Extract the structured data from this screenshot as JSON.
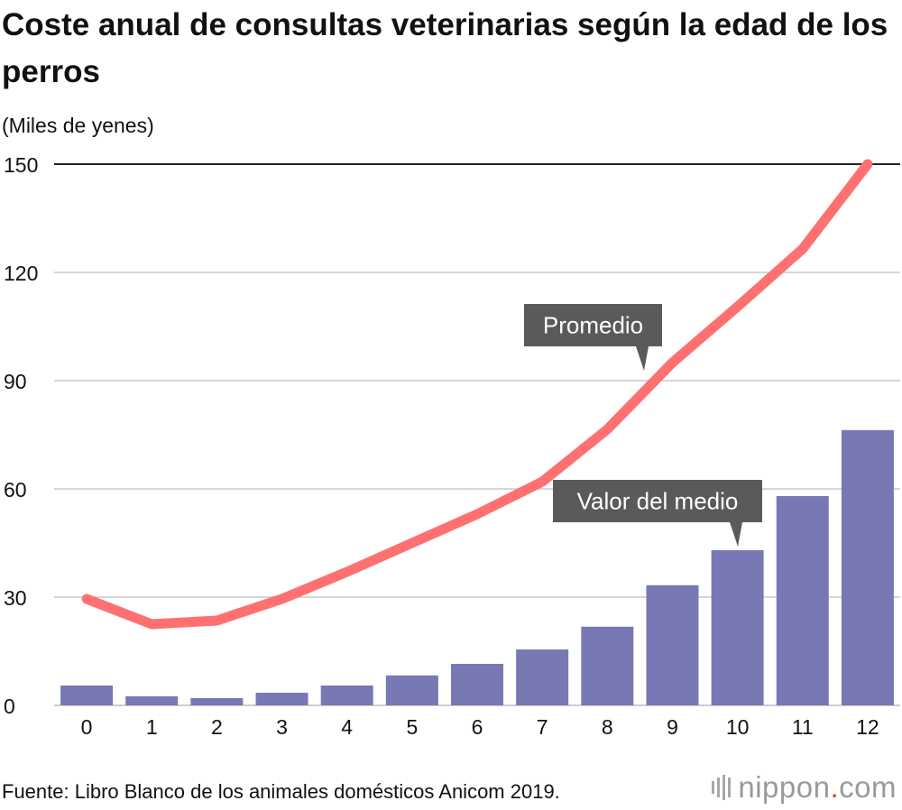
{
  "chart_data": {
    "type": "bar+line",
    "title": "Coste anual de consultas veterinarias según la edad de los perros",
    "ylabel": "(Miles de yenes)",
    "xlabel": "",
    "categories": [
      "0",
      "1",
      "2",
      "3",
      "4",
      "5",
      "6",
      "7",
      "8",
      "9",
      "10",
      "11",
      "12"
    ],
    "ylim": [
      0,
      150
    ],
    "yticks": [
      0,
      30,
      60,
      90,
      120,
      150
    ],
    "series": [
      {
        "name": "Valor del medio",
        "type": "bar",
        "color": "#7878b4",
        "values": [
          5.5,
          2.5,
          2.0,
          3.5,
          5.5,
          8.3,
          11.5,
          15.5,
          21.8,
          33.3,
          43.0,
          58.0,
          76.3
        ]
      },
      {
        "name": "Promedio",
        "type": "line",
        "color": "#ff7070",
        "values": [
          29.5,
          22.5,
          23.5,
          29.5,
          37.0,
          45.0,
          53.0,
          62.0,
          76.5,
          95.0,
          110.5,
          126.5,
          150.0
        ]
      }
    ],
    "annotations": [
      "Promedio",
      "Valor del medio"
    ]
  },
  "source": "Fuente: Libro Blanco de los animales domésticos Anicom 2019.",
  "logo": {
    "name": "nippon",
    "dot": ".",
    "tld": "com"
  }
}
